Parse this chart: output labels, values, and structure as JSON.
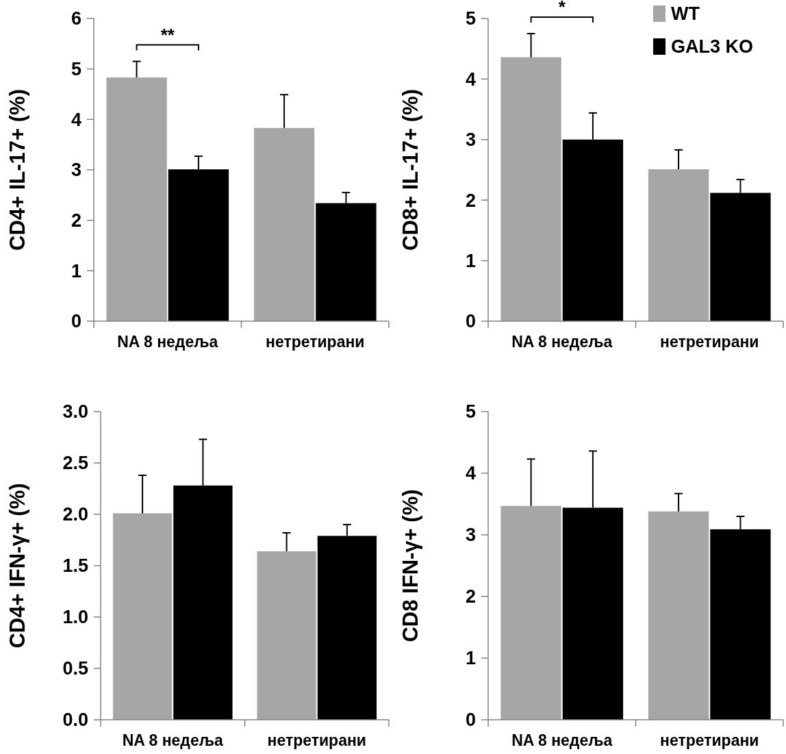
{
  "chart_data": [
    {
      "type": "bar",
      "ylabel": "CD4+ IL-17+ (%)",
      "categories": [
        "NA 8 недеља",
        "нетретирани"
      ],
      "ylim": [
        0,
        6
      ],
      "yticks": [
        0,
        1,
        2,
        3,
        4,
        5,
        6
      ],
      "grid": false,
      "legend": false,
      "series": [
        {
          "color": "#a6a6a6",
          "values": [
            4.83,
            3.83
          ],
          "errors": [
            [
              4.83,
              5.15
            ],
            [
              3.83,
              4.49
            ]
          ]
        },
        {
          "color": "#000000",
          "values": [
            3.01,
            2.34
          ],
          "errors": [
            [
              3.01,
              3.27
            ],
            [
              2.34,
              2.55
            ]
          ]
        }
      ],
      "annotations": [
        "**"
      ]
    },
    {
      "type": "bar",
      "ylabel": "CD8+ IL-17+ (%)",
      "categories": [
        "NA 8 недеља",
        "нетретирани"
      ],
      "ylim": [
        0,
        5
      ],
      "yticks": [
        0,
        1,
        2,
        3,
        4,
        5
      ],
      "grid": false,
      "legend": "top right",
      "series": [
        {
          "name": "WT",
          "color": "#a6a6a6",
          "values": [
            4.36,
            2.51
          ],
          "errors": [
            [
              4.36,
              4.75
            ],
            [
              2.51,
              2.83
            ]
          ]
        },
        {
          "name": "GAL3 KO",
          "color": "#000000",
          "values": [
            3.0,
            2.12
          ],
          "errors": [
            [
              3.0,
              3.44
            ],
            [
              2.12,
              2.34
            ]
          ]
        }
      ],
      "annotations": [
        "*"
      ]
    },
    {
      "type": "bar",
      "ylabel": "CD4+ IFN-γ+ (%)",
      "categories": [
        "NA 8 недеља",
        "нетретирани"
      ],
      "ylim": [
        0,
        3
      ],
      "yticks": [
        {
          "value": 0,
          "label": "0.0"
        },
        {
          "value": 0.5,
          "label": "0.5"
        },
        {
          "value": 1,
          "label": "1.0"
        },
        {
          "value": 1.5,
          "label": "1.5"
        },
        {
          "value": 2,
          "label": "2.0"
        },
        {
          "value": 2.5,
          "label": "2.5"
        },
        {
          "value": 3,
          "label": "3.0"
        }
      ],
      "grid": false,
      "legend": false,
      "series": [
        {
          "color": "#a6a6a6",
          "values": [
            2.01,
            1.64
          ],
          "errors": [
            [
              2.01,
              2.38
            ],
            [
              1.64,
              1.82
            ]
          ]
        },
        {
          "color": "#000000",
          "values": [
            2.28,
            1.79
          ],
          "errors": [
            [
              2.28,
              2.73
            ],
            [
              1.79,
              1.9
            ]
          ]
        }
      ]
    },
    {
      "type": "bar",
      "ylabel": "CD8 IFN-γ+ (%)",
      "categories": [
        "NA 8 недеља",
        "нетретирани"
      ],
      "ylim": [
        0,
        5
      ],
      "yticks": [
        0,
        1,
        2,
        3,
        4,
        5
      ],
      "grid": false,
      "legend": false,
      "series": [
        {
          "color": "#a6a6a6",
          "values": [
            3.47,
            3.38
          ],
          "errors": [
            [
              3.47,
              4.23
            ],
            [
              3.38,
              3.67
            ]
          ]
        },
        {
          "color": "#000000",
          "values": [
            3.44,
            3.09
          ],
          "errors": [
            [
              3.44,
              4.36
            ],
            [
              3.09,
              3.3
            ]
          ]
        }
      ]
    }
  ]
}
